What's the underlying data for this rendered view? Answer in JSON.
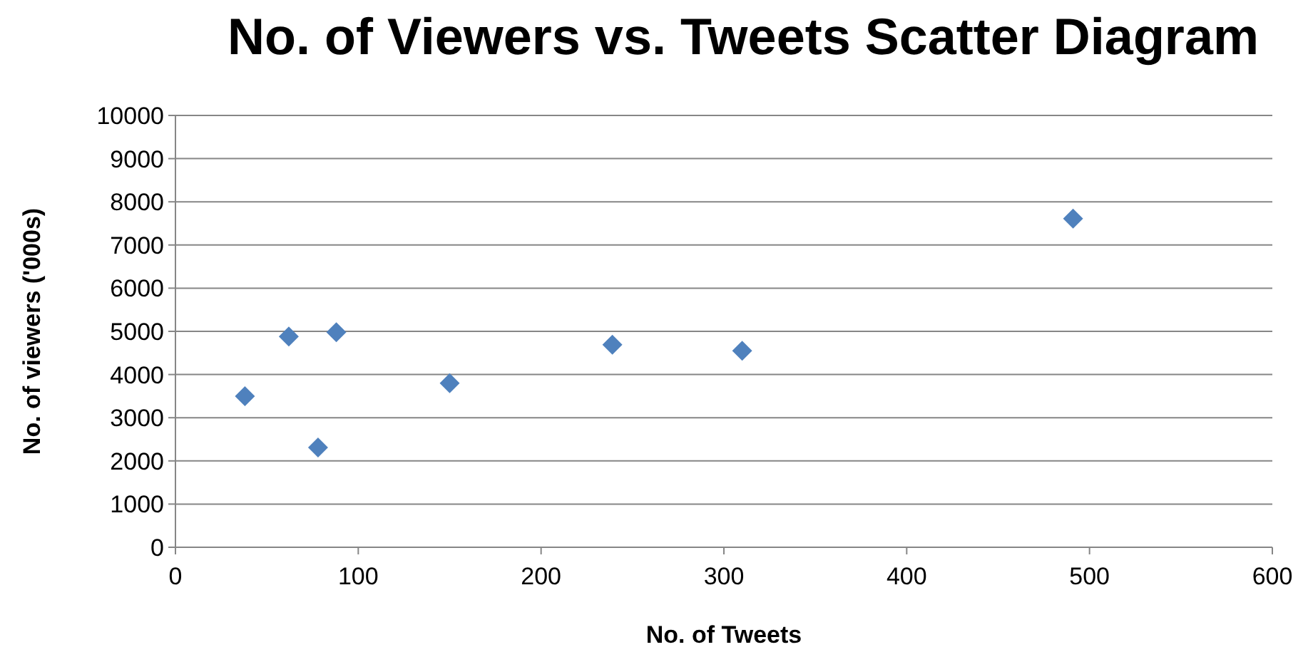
{
  "chart_data": {
    "type": "scatter",
    "title": "No. of Viewers vs. Tweets Scatter Diagram",
    "xlabel": "No. of Tweets",
    "ylabel": "No. of viewers ('000s)",
    "x": [
      38,
      62,
      78,
      88,
      150,
      239,
      310,
      491
    ],
    "series": [
      {
        "color": "#4f81bd",
        "values": [
          3500,
          4880,
          2310,
          4980,
          3800,
          4690,
          4550,
          7610
        ]
      }
    ],
    "xlim": [
      0,
      600
    ],
    "xticks": [
      0,
      100,
      200,
      300,
      400,
      500,
      600
    ],
    "ylim": [
      0,
      10000
    ],
    "yticks": [
      0,
      1000,
      2000,
      3000,
      4000,
      5000,
      6000,
      7000,
      8000,
      9000,
      10000
    ],
    "grid": "y",
    "marker": "diamond"
  }
}
